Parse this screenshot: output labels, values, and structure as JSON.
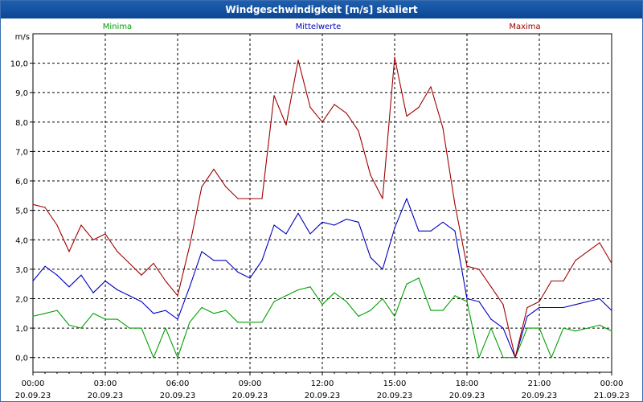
{
  "window": {
    "title": "Windgeschwindigkeit [m/s] skaliert"
  },
  "chart_data": {
    "type": "line",
    "title": "Windgeschwindigkeit [m/s] skaliert",
    "ylabel": "m/s",
    "xlabel": "",
    "ylim": [
      -0.5,
      11.0
    ],
    "xlim": [
      0,
      24
    ],
    "x_unit": "hours since 20.09.23 00:00",
    "yticks": [
      0,
      1,
      2,
      3,
      4,
      5,
      6,
      7,
      8,
      9,
      10
    ],
    "ytick_labels": [
      "0,0",
      "1,0",
      "2,0",
      "3,0",
      "4,0",
      "5,0",
      "6,0",
      "7,0",
      "8,0",
      "9,0",
      "10,0"
    ],
    "xticks": [
      {
        "x": 0,
        "time": "00:00",
        "date": "20.09.23"
      },
      {
        "x": 3,
        "time": "03:00",
        "date": "20.09.23"
      },
      {
        "x": 6,
        "time": "06:00",
        "date": "20.09.23"
      },
      {
        "x": 9,
        "time": "09:00",
        "date": "20.09.23"
      },
      {
        "x": 12,
        "time": "12:00",
        "date": "20.09.23"
      },
      {
        "x": 15,
        "time": "15:00",
        "date": "20.09.23"
      },
      {
        "x": 18,
        "time": "18:00",
        "date": "20.09.23"
      },
      {
        "x": 21,
        "time": "21:00",
        "date": "20.09.23"
      },
      {
        "x": 24,
        "time": "00:00",
        "date": "21.09.23"
      }
    ],
    "grid": true,
    "series": [
      {
        "name": "Minima",
        "color": "#00a000",
        "x": [
          0,
          0.5,
          1,
          1.5,
          2,
          2.5,
          3,
          3.5,
          4,
          4.5,
          5,
          5.5,
          6,
          6.5,
          7,
          7.5,
          8,
          8.5,
          9,
          9.5,
          10,
          10.5,
          11,
          11.5,
          12,
          12.5,
          13,
          13.5,
          14,
          14.5,
          15,
          15.5,
          16,
          16.5,
          17,
          17.5,
          18,
          18.5,
          19,
          19.5,
          20,
          20.5,
          21,
          21.5,
          22,
          22.5,
          23,
          23.5,
          24
        ],
        "y": [
          1.4,
          1.5,
          1.6,
          1.1,
          1.0,
          1.5,
          1.3,
          1.3,
          1.0,
          1.0,
          0.0,
          1.0,
          0.0,
          1.2,
          1.7,
          1.5,
          1.6,
          1.2,
          1.2,
          1.2,
          1.9,
          2.1,
          2.3,
          2.4,
          1.8,
          2.2,
          1.9,
          1.4,
          1.6,
          2.0,
          1.4,
          2.5,
          2.7,
          1.6,
          1.6,
          2.1,
          1.9,
          0.0,
          1.0,
          0.0,
          0.0,
          1.0,
          1.0,
          0.0,
          1.0,
          0.9,
          1.0,
          1.1,
          0.9
        ]
      },
      {
        "name": "Mittelwerte",
        "color": "#0000c0",
        "x": [
          0,
          0.5,
          1,
          1.5,
          2,
          2.5,
          3,
          3.5,
          4,
          4.5,
          5,
          5.5,
          6,
          6.5,
          7,
          7.5,
          8,
          8.5,
          9,
          9.5,
          10,
          10.5,
          11,
          11.5,
          12,
          12.5,
          13,
          13.5,
          14,
          14.5,
          15,
          15.5,
          16,
          16.5,
          17,
          17.5,
          18,
          18.5,
          19,
          19.5,
          20,
          20.5,
          21,
          21.5,
          22,
          22.5,
          23,
          23.5,
          24
        ],
        "y": [
          2.6,
          3.1,
          2.8,
          2.4,
          2.8,
          2.2,
          2.6,
          2.3,
          2.1,
          1.9,
          1.5,
          1.6,
          1.3,
          2.4,
          3.6,
          3.3,
          3.3,
          2.9,
          2.7,
          3.3,
          4.5,
          4.2,
          4.9,
          4.2,
          4.6,
          4.5,
          4.7,
          4.6,
          3.4,
          3.0,
          4.4,
          5.4,
          4.3,
          4.3,
          4.6,
          4.3,
          2.0,
          1.9,
          1.3,
          1.0,
          0.0,
          1.4,
          1.7,
          1.7,
          1.7,
          1.8,
          1.9,
          2.0,
          1.6
        ]
      },
      {
        "name": "Maxima",
        "color": "#a00000",
        "x": [
          0,
          0.5,
          1,
          1.5,
          2,
          2.5,
          3,
          3.5,
          4,
          4.5,
          5,
          5.5,
          6,
          6.5,
          7,
          7.5,
          8,
          8.5,
          9,
          9.5,
          10,
          10.5,
          11,
          11.5,
          12,
          12.5,
          13,
          13.5,
          14,
          14.5,
          15,
          15.5,
          16,
          16.5,
          17,
          17.5,
          18,
          18.5,
          19,
          19.5,
          20,
          20.5,
          21,
          21.5,
          22,
          22.5,
          23,
          23.5,
          24
        ],
        "y": [
          5.2,
          5.1,
          4.5,
          3.6,
          4.5,
          4.0,
          4.2,
          3.6,
          3.2,
          2.8,
          3.2,
          2.6,
          2.1,
          3.8,
          5.8,
          6.4,
          5.8,
          5.4,
          5.4,
          5.4,
          8.9,
          7.9,
          10.1,
          8.5,
          8.0,
          8.6,
          8.3,
          7.7,
          6.2,
          5.4,
          10.2,
          8.2,
          8.5,
          9.2,
          7.8,
          5.2,
          3.1,
          3.0,
          2.4,
          1.8,
          0.0,
          1.7,
          1.9,
          2.6,
          2.6,
          3.3,
          3.6,
          3.9,
          3.2
        ]
      }
    ]
  }
}
